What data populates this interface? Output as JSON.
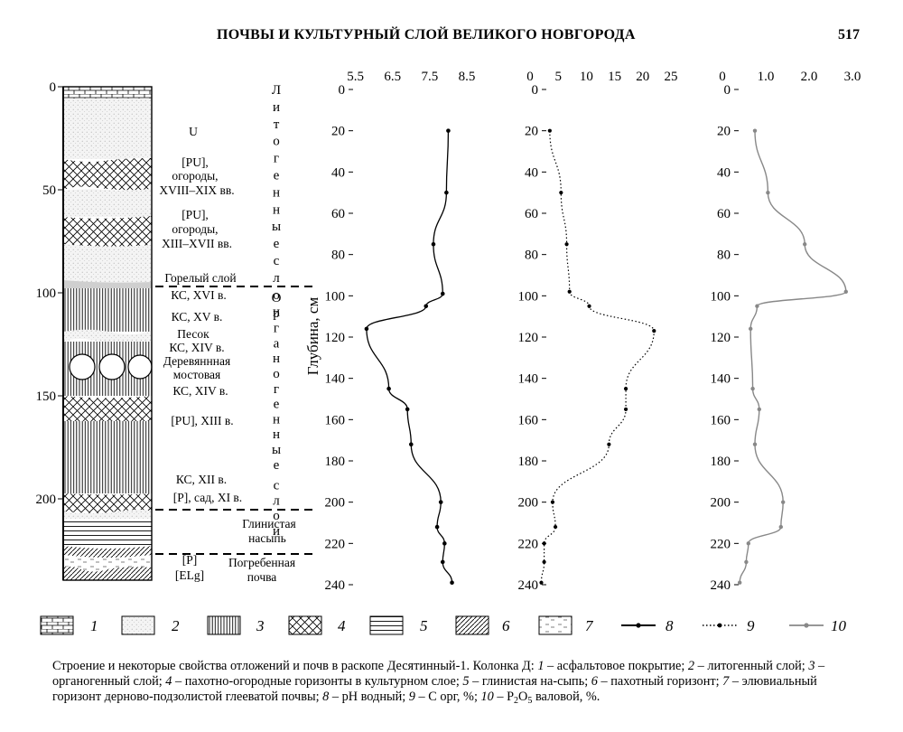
{
  "header": {
    "title": "ПОЧВЫ И КУЛЬТУРНЫЙ СЛОЙ ВЕЛИКОГО НОВГОРОДА",
    "page_number": "517"
  },
  "column": {
    "depth_ticks": [
      "0",
      "50",
      "100",
      "150",
      "200"
    ],
    "layer_labels": [
      "U",
      "[PU],",
      "огороды,",
      "XVIII–XIX вв.",
      "[PU],",
      "огороды,",
      "XIII–XVII вв.",
      "Горелый слой",
      "КС, XVI в.",
      "КС, XV в.",
      "Песок",
      "КС, XIV в.",
      "Деревяннная",
      "мостовая",
      "КС, XIV в.",
      "[PU], XIII в.",
      "КС, XII в.",
      "[P], сад, XI в.",
      "Глинистая",
      "насыпь",
      "[P]",
      "[ELg]",
      "Погребенная",
      "почва"
    ],
    "vertical_upper": "Литогенные слои",
    "vertical_lower": "Органогенные слои"
  },
  "depth_axis_label": "Глубина, см",
  "chart_data": [
    {
      "type": "line",
      "name": "pH водный",
      "xticks": [
        "5.5",
        "6.5",
        "7.5",
        "8.5"
      ],
      "xlim": [
        5.0,
        8.5
      ],
      "ylim": [
        0,
        240
      ],
      "yticks": [
        "0",
        "20",
        "40",
        "60",
        "80",
        "100",
        "120",
        "140",
        "160",
        "180",
        "200",
        "220",
        "240"
      ],
      "depth": [
        20,
        50,
        75,
        99,
        105,
        116,
        145,
        155,
        172,
        200,
        212,
        220,
        229,
        239
      ],
      "values": [
        8.0,
        7.95,
        7.6,
        7.85,
        7.4,
        5.8,
        6.4,
        6.9,
        7.0,
        7.8,
        7.7,
        7.9,
        7.85,
        8.1
      ]
    },
    {
      "type": "line",
      "name": "C орг, %",
      "xticks": [
        "0",
        "5",
        "10",
        "15",
        "20",
        "25"
      ],
      "xlim": [
        0,
        25
      ],
      "ylim": [
        0,
        240
      ],
      "yticks": [
        "0",
        "20",
        "40",
        "60",
        "80",
        "100",
        "120",
        "140",
        "160",
        "180",
        "200",
        "220",
        "240"
      ],
      "depth": [
        20,
        50,
        75,
        98,
        105,
        117,
        145,
        155,
        172,
        200,
        212,
        220,
        229,
        239
      ],
      "values": [
        3.5,
        5.5,
        6.5,
        7.0,
        10.5,
        22.0,
        17.0,
        17.0,
        14.0,
        4.0,
        4.5,
        2.5,
        2.5,
        2.0
      ]
    },
    {
      "type": "line",
      "name": "P2O5 валовой, %",
      "xticks": [
        "0",
        "1.0",
        "2.0",
        "3.0"
      ],
      "xlim": [
        0,
        3.0
      ],
      "ylim": [
        0,
        240
      ],
      "yticks": [
        "0",
        "20",
        "40",
        "60",
        "80",
        "100",
        "120",
        "140",
        "160",
        "180",
        "200",
        "220",
        "240"
      ],
      "depth": [
        20,
        50,
        75,
        98,
        105,
        116,
        145,
        155,
        172,
        200,
        212,
        220,
        229,
        239
      ],
      "values": [
        0.75,
        1.05,
        1.9,
        2.85,
        0.8,
        0.65,
        0.7,
        0.85,
        0.75,
        1.4,
        1.35,
        0.6,
        0.55,
        0.4
      ]
    }
  ],
  "legend": {
    "numbers": [
      "1",
      "2",
      "3",
      "4",
      "5",
      "6",
      "7",
      "8",
      "9",
      "10"
    ]
  },
  "caption": {
    "lead": "Строение и некоторые свойства отложений и почв в раскопе Десятинный-1. Колонка Д: ",
    "n1": "1",
    "t1": " – асфальтовое покрытие;",
    "n2": "2",
    "t2": " – литогенный слой; ",
    "n3": "3",
    "t3": " – органогенный слой; ",
    "n4": "4",
    "t4": " – пахотно-огородные горизонты в культурном слое; ",
    "n5": "5",
    "t5": " – глинистая на-сыпь; ",
    "n6": "6",
    "t6": " – пахотный горизонт; ",
    "n7": "7",
    "t7": " – элювиальный горизонт дерново-подзолистой глееватой почвы; ",
    "n8": "8",
    "t8": " – pH водный; ",
    "n9": "9",
    "t9": " – С орг, %; ",
    "n10": "10",
    "t10": " – P",
    "sub": "2",
    "o": "O",
    "sub2": "5",
    "t11": " валовой, %."
  }
}
